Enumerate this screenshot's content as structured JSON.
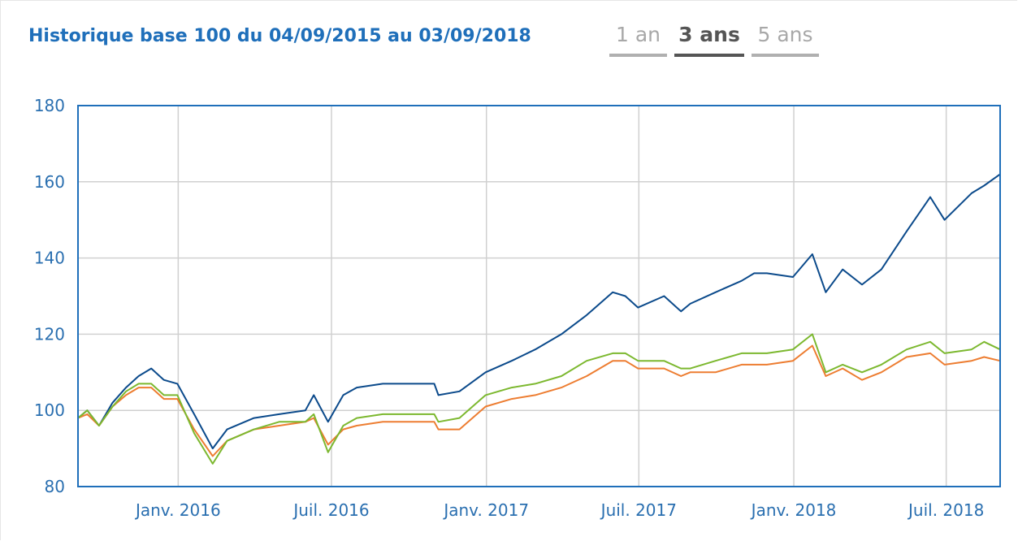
{
  "header": {
    "title": "Historique base 100 du 04/09/2015 au 03/09/2018",
    "tabs": [
      {
        "label": "1 an",
        "active": false
      },
      {
        "label": "3 ans",
        "active": true
      },
      {
        "label": "5 ans",
        "active": false
      }
    ]
  },
  "colors": {
    "title": "#1f6fba",
    "plot_border": "#1f6fba",
    "grid": "#d0d0d0",
    "tick_text": "#2a6fb0"
  },
  "chart_data": {
    "type": "line",
    "title": "Historique base 100 du 04/09/2015 au 03/09/2018",
    "xlabel": "",
    "ylabel": "",
    "xlim": [
      "2015-09-04",
      "2018-09-03"
    ],
    "ylim": [
      80,
      180
    ],
    "y_ticks": [
      80,
      100,
      120,
      140,
      160,
      180
    ],
    "x_ticks": [
      {
        "date": "2016-01-01",
        "label": "Janv. 2016"
      },
      {
        "date": "2016-07-01",
        "label": "Juil. 2016"
      },
      {
        "date": "2017-01-01",
        "label": "Janv. 2017"
      },
      {
        "date": "2017-07-01",
        "label": "Juil. 2017"
      },
      {
        "date": "2018-01-01",
        "label": "Janv. 2018"
      },
      {
        "date": "2018-07-01",
        "label": "Juil. 2018"
      }
    ],
    "grid": true,
    "legend": "none",
    "series": [
      {
        "color": "#0b4a8b",
        "points": [
          [
            "2015-09-04",
            98
          ],
          [
            "2015-09-15",
            100
          ],
          [
            "2015-09-29",
            96
          ],
          [
            "2015-10-15",
            102
          ],
          [
            "2015-10-31",
            106
          ],
          [
            "2015-11-15",
            109
          ],
          [
            "2015-11-30",
            111
          ],
          [
            "2015-12-15",
            108
          ],
          [
            "2015-12-31",
            107
          ],
          [
            "2016-01-20",
            99
          ],
          [
            "2016-02-11",
            90
          ],
          [
            "2016-02-28",
            95
          ],
          [
            "2016-03-31",
            98
          ],
          [
            "2016-04-30",
            99
          ],
          [
            "2016-05-31",
            100
          ],
          [
            "2016-06-10",
            104
          ],
          [
            "2016-06-27",
            97
          ],
          [
            "2016-07-15",
            104
          ],
          [
            "2016-07-31",
            106
          ],
          [
            "2016-08-31",
            107
          ],
          [
            "2016-09-30",
            107
          ],
          [
            "2016-10-31",
            107
          ],
          [
            "2016-11-05",
            104
          ],
          [
            "2016-11-30",
            105
          ],
          [
            "2016-12-31",
            110
          ],
          [
            "2017-01-31",
            113
          ],
          [
            "2017-02-28",
            116
          ],
          [
            "2017-03-31",
            120
          ],
          [
            "2017-04-30",
            125
          ],
          [
            "2017-05-31",
            131
          ],
          [
            "2017-06-15",
            130
          ],
          [
            "2017-06-30",
            127
          ],
          [
            "2017-07-31",
            130
          ],
          [
            "2017-08-20",
            126
          ],
          [
            "2017-08-31",
            128
          ],
          [
            "2017-09-30",
            131
          ],
          [
            "2017-10-31",
            134
          ],
          [
            "2017-11-15",
            136
          ],
          [
            "2017-11-30",
            136
          ],
          [
            "2017-12-31",
            135
          ],
          [
            "2018-01-23",
            141
          ],
          [
            "2018-02-08",
            131
          ],
          [
            "2018-02-28",
            137
          ],
          [
            "2018-03-23",
            133
          ],
          [
            "2018-04-15",
            137
          ],
          [
            "2018-05-15",
            147
          ],
          [
            "2018-06-12",
            156
          ],
          [
            "2018-06-29",
            150
          ],
          [
            "2018-07-31",
            157
          ],
          [
            "2018-08-15",
            159
          ],
          [
            "2018-09-03",
            162
          ]
        ]
      },
      {
        "color": "#ed7d31",
        "points": [
          [
            "2015-09-04",
            98
          ],
          [
            "2015-09-15",
            99
          ],
          [
            "2015-09-29",
            96
          ],
          [
            "2015-10-15",
            101
          ],
          [
            "2015-10-31",
            104
          ],
          [
            "2015-11-15",
            106
          ],
          [
            "2015-11-30",
            106
          ],
          [
            "2015-12-15",
            103
          ],
          [
            "2015-12-31",
            103
          ],
          [
            "2016-01-20",
            95
          ],
          [
            "2016-02-11",
            88
          ],
          [
            "2016-02-28",
            92
          ],
          [
            "2016-03-31",
            95
          ],
          [
            "2016-04-30",
            96
          ],
          [
            "2016-05-31",
            97
          ],
          [
            "2016-06-10",
            98
          ],
          [
            "2016-06-27",
            91
          ],
          [
            "2016-07-15",
            95
          ],
          [
            "2016-07-31",
            96
          ],
          [
            "2016-08-31",
            97
          ],
          [
            "2016-09-30",
            97
          ],
          [
            "2016-10-31",
            97
          ],
          [
            "2016-11-05",
            95
          ],
          [
            "2016-11-30",
            95
          ],
          [
            "2016-12-31",
            101
          ],
          [
            "2017-01-31",
            103
          ],
          [
            "2017-02-28",
            104
          ],
          [
            "2017-03-31",
            106
          ],
          [
            "2017-04-30",
            109
          ],
          [
            "2017-05-31",
            113
          ],
          [
            "2017-06-15",
            113
          ],
          [
            "2017-06-30",
            111
          ],
          [
            "2017-07-31",
            111
          ],
          [
            "2017-08-20",
            109
          ],
          [
            "2017-08-31",
            110
          ],
          [
            "2017-09-30",
            110
          ],
          [
            "2017-10-31",
            112
          ],
          [
            "2017-11-15",
            112
          ],
          [
            "2017-11-30",
            112
          ],
          [
            "2017-12-31",
            113
          ],
          [
            "2018-01-23",
            117
          ],
          [
            "2018-02-08",
            109
          ],
          [
            "2018-02-28",
            111
          ],
          [
            "2018-03-23",
            108
          ],
          [
            "2018-04-15",
            110
          ],
          [
            "2018-05-15",
            114
          ],
          [
            "2018-06-12",
            115
          ],
          [
            "2018-06-29",
            112
          ],
          [
            "2018-07-31",
            113
          ],
          [
            "2018-08-15",
            114
          ],
          [
            "2018-09-03",
            113
          ]
        ]
      },
      {
        "color": "#7cb82f",
        "points": [
          [
            "2015-09-04",
            98
          ],
          [
            "2015-09-15",
            100
          ],
          [
            "2015-09-29",
            96
          ],
          [
            "2015-10-15",
            101
          ],
          [
            "2015-10-31",
            105
          ],
          [
            "2015-11-15",
            107
          ],
          [
            "2015-11-30",
            107
          ],
          [
            "2015-12-15",
            104
          ],
          [
            "2015-12-31",
            104
          ],
          [
            "2016-01-20",
            94
          ],
          [
            "2016-02-11",
            86
          ],
          [
            "2016-02-28",
            92
          ],
          [
            "2016-03-31",
            95
          ],
          [
            "2016-04-30",
            97
          ],
          [
            "2016-05-31",
            97
          ],
          [
            "2016-06-10",
            99
          ],
          [
            "2016-06-27",
            89
          ],
          [
            "2016-07-15",
            96
          ],
          [
            "2016-07-31",
            98
          ],
          [
            "2016-08-31",
            99
          ],
          [
            "2016-09-30",
            99
          ],
          [
            "2016-10-31",
            99
          ],
          [
            "2016-11-05",
            97
          ],
          [
            "2016-11-30",
            98
          ],
          [
            "2016-12-31",
            104
          ],
          [
            "2017-01-31",
            106
          ],
          [
            "2017-02-28",
            107
          ],
          [
            "2017-03-31",
            109
          ],
          [
            "2017-04-30",
            113
          ],
          [
            "2017-05-31",
            115
          ],
          [
            "2017-06-15",
            115
          ],
          [
            "2017-06-30",
            113
          ],
          [
            "2017-07-31",
            113
          ],
          [
            "2017-08-20",
            111
          ],
          [
            "2017-08-31",
            111
          ],
          [
            "2017-09-30",
            113
          ],
          [
            "2017-10-31",
            115
          ],
          [
            "2017-11-15",
            115
          ],
          [
            "2017-11-30",
            115
          ],
          [
            "2017-12-31",
            116
          ],
          [
            "2018-01-23",
            120
          ],
          [
            "2018-02-08",
            110
          ],
          [
            "2018-02-28",
            112
          ],
          [
            "2018-03-23",
            110
          ],
          [
            "2018-04-15",
            112
          ],
          [
            "2018-05-15",
            116
          ],
          [
            "2018-06-12",
            118
          ],
          [
            "2018-06-29",
            115
          ],
          [
            "2018-07-31",
            116
          ],
          [
            "2018-08-15",
            118
          ],
          [
            "2018-09-03",
            116
          ]
        ]
      }
    ]
  }
}
